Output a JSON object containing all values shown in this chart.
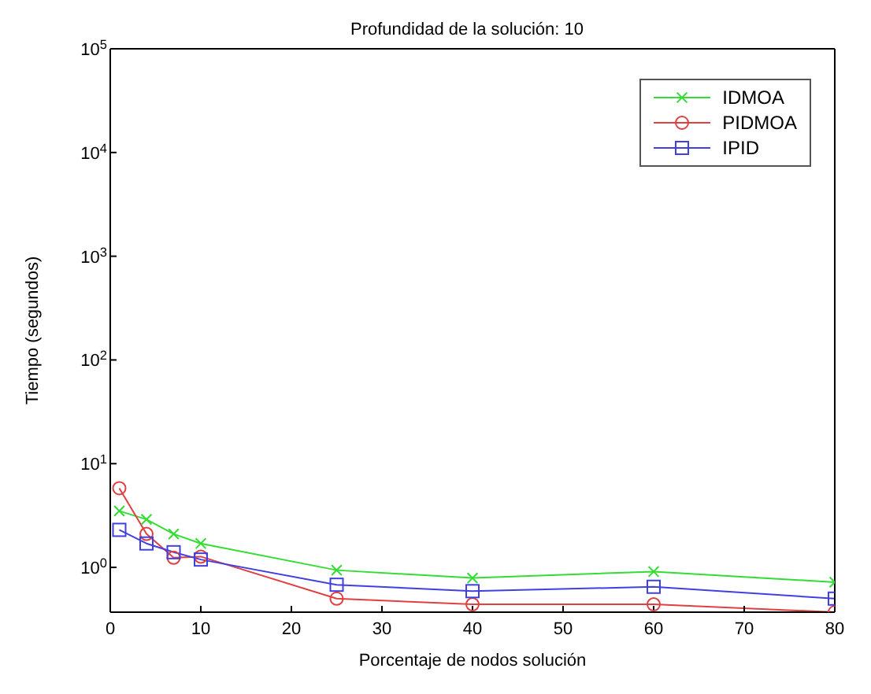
{
  "chart_data": {
    "type": "line",
    "title": "Profundidad de la solución: 10",
    "xlabel": "Porcentaje de nodos solución",
    "ylabel": "Tiempo (segundos)",
    "x": [
      1,
      4,
      7,
      10,
      25,
      40,
      60,
      80
    ],
    "series": [
      {
        "name": "IDMOA",
        "color": "#33dd33",
        "marker": "cross",
        "values": [
          3.5,
          2.9,
          2.1,
          1.7,
          0.94,
          0.79,
          0.91,
          0.72
        ]
      },
      {
        "name": "PIDMOA",
        "color": "#e04040",
        "marker": "circle",
        "values": [
          5.8,
          2.1,
          1.24,
          1.27,
          0.5,
          0.44,
          0.44,
          0.37
        ]
      },
      {
        "name": "IPID",
        "color": "#4040e0",
        "marker": "square",
        "values": [
          2.3,
          1.7,
          1.4,
          1.19,
          0.68,
          0.59,
          0.65,
          0.5
        ]
      }
    ],
    "log": "y",
    "xlim": [
      0,
      80
    ],
    "xticks": [
      0,
      10,
      20,
      30,
      40,
      50,
      60,
      70,
      80
    ],
    "ylim": [
      0.37,
      100000
    ],
    "yticks": [
      {
        "value": 1,
        "label": "10$^{0}$"
      },
      {
        "value": 10,
        "label": "10$^{1}$"
      },
      {
        "value": 100,
        "label": "10$^{2}$"
      },
      {
        "value": 1000,
        "label": "10$^{3}$"
      },
      {
        "value": 10000,
        "label": "10$^{4}$"
      },
      {
        "value": 100000,
        "label": "10$^{5}$"
      }
    ],
    "grid": false,
    "legend": "top right",
    "line_style": "solid"
  }
}
